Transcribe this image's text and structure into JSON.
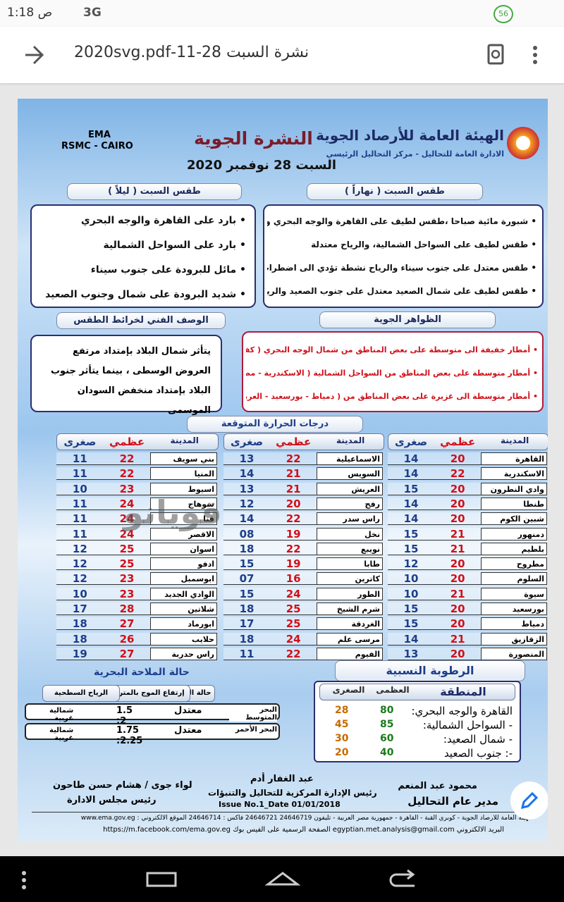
{
  "status_bar": {
    "time": "1:18 ص",
    "network": "3G",
    "badge": "56"
  },
  "toolbar": {
    "title": "نشرة السبت 28-11-2020svg.pdf"
  },
  "header": {
    "org": "الهيئة العامة للأرصاد الجوية",
    "dept": "الادارة العامة للتحاليل - مركز التحاليل الرئيسي",
    "title": "النشرة الجوية",
    "date": "السبت 28 نوفمبر 2020",
    "ema": "EMA",
    "rsmc": "RSMC - CAIRO"
  },
  "day": {
    "heading": "طقس السبت ( نهاراً )",
    "items": [
      "شبورة مائية صباحا ،طقس لطيف على القاهرة والوجه البحري والرياح معتدلة",
      "طقس لطيف على السواحل الشمالية، والرياح معتدلة",
      "طقس معتدل على جنوب سيناء والرياح نشطة تؤدي الى اضطراب الملاحة البحرية على خليج السويس",
      "طقس لطيف على شمال الصعيد معتدل على جنوب الصعيد والرياح معتدلة"
    ]
  },
  "night": {
    "heading": "طقس السبت ( ليلاً )",
    "items": [
      "بارد على القاهرة والوجه البحري",
      "بارد على السواحل الشمالية",
      "مائل للبرودة على جنوب سيناء",
      "شديد البرودة على شمال وجنوب الصعيد"
    ]
  },
  "phenomena": {
    "heading": "الظواهر الجوية",
    "items": [
      "أمطار خفيفة الى متوسطة على بعض المناطق من شمال الوجه البحري ( كفر الشيخ - البحيرة - الدقهلية )",
      "أمطار متوسطة على بعض المناطق من السواحل الشمالية ( الاسكندرية - مطروح - رشيد - بلطيم - السلوم)",
      "أمطار متوسطة الى غزيرة على بعض المناطق من ( دمياط - بورسعيد - العريش - رفح )"
    ]
  },
  "description": {
    "heading": "الوصف الفني لخرائط الطقس",
    "text": "يتأثر شمال البلاد بإمتداد مرتفع العروض الوسطى ، بينما يتأثر جنوب البلاد بإمتداد منخفض السودان الموسمى"
  },
  "temperatures": {
    "heading": "درجات الحرارة المتوقعة",
    "tables": [
      {
        "columns": [
          "المدينة",
          "عظمي",
          "صغرى"
        ],
        "rows": [
          [
            "القاهرة",
            "20",
            "14"
          ],
          [
            "الاسكندرية",
            "22",
            "14"
          ],
          [
            "وادي النطرون",
            "20",
            "15"
          ],
          [
            "طنطا",
            "20",
            "14"
          ],
          [
            "شبين الكوم",
            "20",
            "14"
          ],
          [
            "دمنهور",
            "21",
            "15"
          ],
          [
            "بلطيم",
            "21",
            "15"
          ],
          [
            "مطروح",
            "20",
            "12"
          ],
          [
            "السلوم",
            "20",
            "10"
          ],
          [
            "سيوة",
            "21",
            "10"
          ],
          [
            "بورسعيد",
            "20",
            "15"
          ],
          [
            "دمياط",
            "20",
            "15"
          ],
          [
            "الزقازيق",
            "21",
            "14"
          ],
          [
            "المنصورة",
            "20",
            "13"
          ]
        ]
      },
      {
        "columns": [
          "المدينة",
          "عظمي",
          "صغرى"
        ],
        "rows": [
          [
            "الاسماعيلية",
            "22",
            "13"
          ],
          [
            "السويس",
            "21",
            "14"
          ],
          [
            "العريش",
            "21",
            "13"
          ],
          [
            "رفح",
            "20",
            "12"
          ],
          [
            "راس سدر",
            "22",
            "14"
          ],
          [
            "نخل",
            "19",
            "08"
          ],
          [
            "نويبع",
            "22",
            "18"
          ],
          [
            "طابا",
            "19",
            "15"
          ],
          [
            "كاترين",
            "16",
            "07"
          ],
          [
            "الطور",
            "24",
            "15"
          ],
          [
            "شرم الشيخ",
            "25",
            "18"
          ],
          [
            "الغردقة",
            "25",
            "17"
          ],
          [
            "مرسى علم",
            "24",
            "18"
          ],
          [
            "الفيوم",
            "22",
            "11"
          ]
        ]
      },
      {
        "columns": [
          "المدينة",
          "عظمي",
          "صغرى"
        ],
        "rows": [
          [
            "بني سويف",
            "22",
            "11"
          ],
          [
            "المنيا",
            "22",
            "11"
          ],
          [
            "اسيوط",
            "23",
            "10"
          ],
          [
            "سوهاج",
            "24",
            "11"
          ],
          [
            "قنا",
            "24",
            "11"
          ],
          [
            "الاقصر",
            "24",
            "11"
          ],
          [
            "اسوان",
            "25",
            "12"
          ],
          [
            "ادفو",
            "25",
            "12"
          ],
          [
            "ابوسمبل",
            "23",
            "12"
          ],
          [
            "الوادي الجديد",
            "23",
            "10"
          ],
          [
            "شلاتين",
            "28",
            "17"
          ],
          [
            "ابورماد",
            "27",
            "18"
          ],
          [
            "حلايب",
            "26",
            "18"
          ],
          [
            "راس حدربة",
            "27",
            "19"
          ]
        ]
      }
    ]
  },
  "humidity": {
    "heading": "الرطوبة النسبية",
    "columns": [
      "المنطقة",
      "العظمى",
      "الصغرى"
    ],
    "rows": [
      [
        "القاهرة والوجه البحري:",
        "80",
        "28"
      ],
      [
        "- السواحل الشمالية:",
        "85",
        "45"
      ],
      [
        "- شمال الصعيد:",
        "60",
        "30"
      ],
      [
        "-: جنوب الصعيد",
        "40",
        "20"
      ]
    ]
  },
  "marine": {
    "heading": "حالة الملاحة البحرية",
    "columns": [
      "حالة البحر",
      "إرتفاع الموج بالمتر",
      "الرياح السطحية"
    ],
    "rows": [
      [
        "البحر المتوسط",
        "معتدل",
        "1.5 :2",
        "شمالية غربية"
      ],
      [
        "البحر الأحمر",
        "معتدل",
        "1.75 :2.25",
        "شمالية غربية"
      ]
    ]
  },
  "signatures": [
    {
      "name": "محمود عبد المنعم",
      "role": "مدير عام التحاليل"
    },
    {
      "name": "عبد الغفار أدم",
      "role": "رئيس الإدارة المركزية للتحاليل والتنبؤات",
      "issue": "Issue No.1_Date 01/01/2018"
    },
    {
      "name": "لواء جوى / هشام حسن طاحون",
      "role": "رئيس مجلس الادارة"
    }
  ],
  "footer": {
    "line1": "الهيئة العامة للأرصاد الجوية - كوبري القبة - القاهرة - جمهورية مصر العربية - تليفون 24646719 24646721 فاكس : 24646714 الموقع الالكتروني : www.ema.gov.eg",
    "line2": "البريد الالكتروني egyptian.met.analysis@gmail.com الصفحة الرسمية على الفيس بوك https://m.facebook.com/ema.gov.eg"
  },
  "watermark": "قويانو"
}
